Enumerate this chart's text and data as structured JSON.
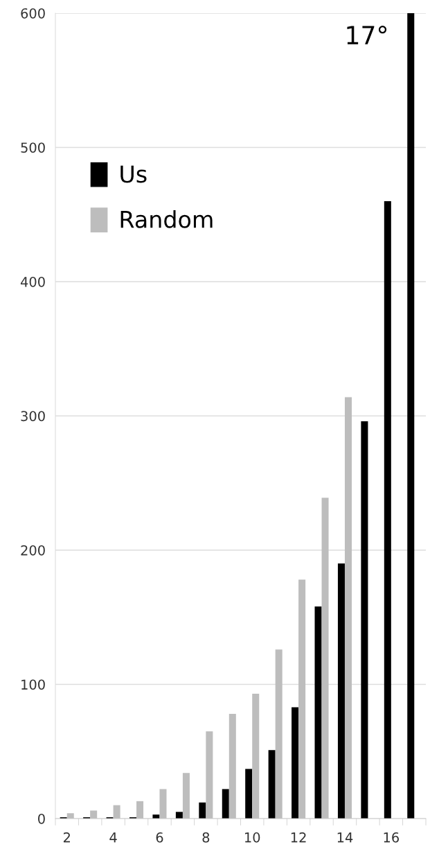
{
  "chart_data": {
    "type": "bar",
    "categories": [
      "2",
      null,
      "4",
      null,
      "6",
      null,
      "8",
      null,
      "10",
      null,
      "12",
      null,
      "14",
      null,
      "16",
      null
    ],
    "series": [
      {
        "name": "Us",
        "color": "#000000",
        "values": [
          1,
          1,
          1,
          1,
          3,
          5,
          12,
          22,
          37,
          51,
          83,
          158,
          190,
          296,
          460,
          600
        ]
      },
      {
        "name": "Random",
        "color": "#bdbdbd",
        "values": [
          4,
          6,
          10,
          13,
          22,
          34,
          65,
          78,
          93,
          126,
          178,
          239,
          314,
          null,
          null,
          null
        ]
      }
    ],
    "ylim": [
      0,
      600
    ],
    "yticks": [
      0,
      100,
      200,
      300,
      400,
      500,
      600
    ],
    "grid": "y",
    "legend": "top left",
    "annotations": [
      "17°"
    ]
  }
}
